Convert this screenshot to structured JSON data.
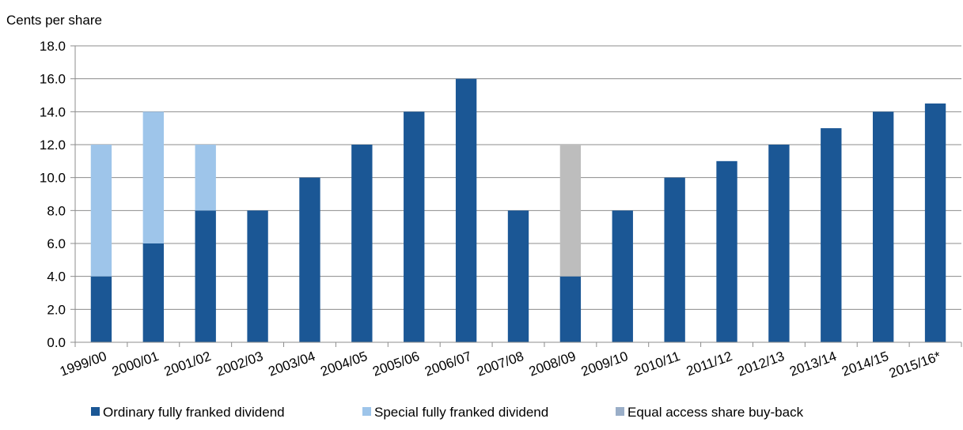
{
  "chart_data": {
    "type": "bar",
    "stacked": true,
    "ylabel": "Cents per share",
    "xlabel": "",
    "ylim": [
      0,
      18
    ],
    "yticks": [
      "0.0",
      "2.0",
      "4.0",
      "6.0",
      "8.0",
      "10.0",
      "12.0",
      "14.0",
      "16.0",
      "18.0"
    ],
    "grid": true,
    "legend_position": "bottom",
    "categories": [
      "1999/00",
      "2000/01",
      "2001/02",
      "2002/03",
      "2003/04",
      "2004/05",
      "2005/06",
      "2006/07",
      "2007/08",
      "2008/09",
      "2009/10",
      "2010/11",
      "2011/12",
      "2012/13",
      "2013/14",
      "2014/15",
      "2015/16*"
    ],
    "series": [
      {
        "name": "Ordinary fully franked dividend",
        "color": "#1b5795",
        "values": [
          4,
          6,
          8,
          8,
          10,
          12,
          14,
          16,
          8,
          4,
          8,
          10,
          11,
          12,
          13,
          14,
          14.5
        ]
      },
      {
        "name": "Special fully franked dividend",
        "color": "#9ec5ea",
        "values": [
          8,
          8,
          4,
          0,
          0,
          0,
          0,
          0,
          0,
          0,
          0,
          0,
          0,
          0,
          0,
          0,
          0
        ]
      },
      {
        "name": "Equal access share buy-back",
        "color": "#bdbdbd",
        "legend_color": "#9aaec8",
        "values": [
          0,
          0,
          0,
          0,
          0,
          0,
          0,
          0,
          0,
          8,
          0,
          0,
          0,
          0,
          0,
          0,
          0
        ]
      }
    ]
  }
}
